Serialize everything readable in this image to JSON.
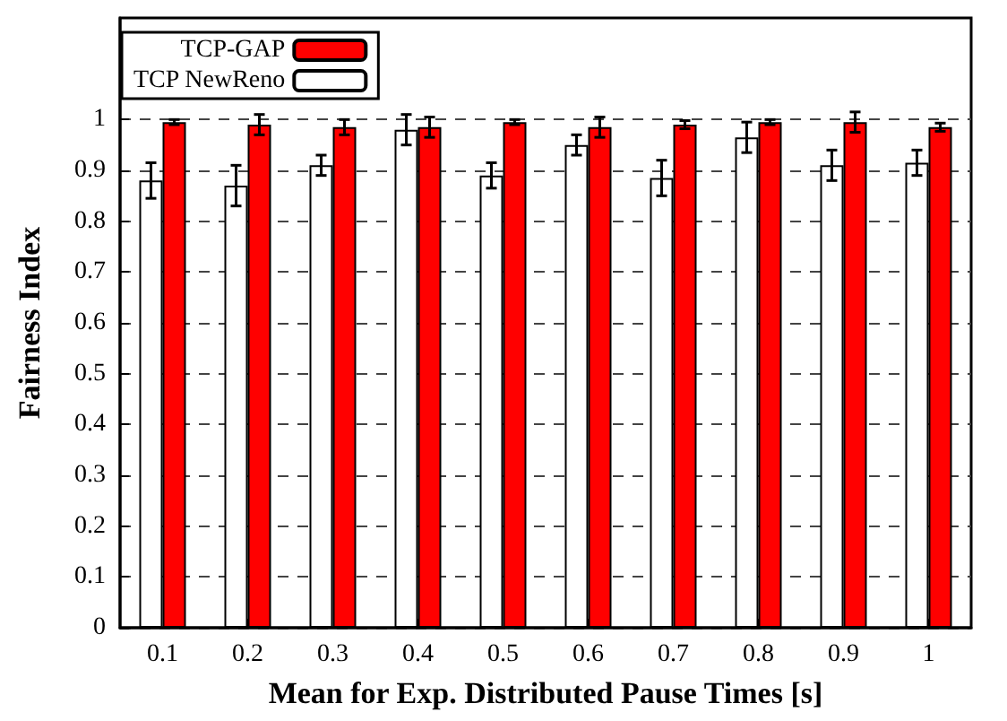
{
  "chart_data": {
    "type": "bar",
    "xlabel": "Mean for Exp. Distributed Pause Times [s]",
    "ylabel": "Fairness Index",
    "categories": [
      "0.1",
      "0.2",
      "0.3",
      "0.4",
      "0.5",
      "0.6",
      "0.7",
      "0.8",
      "0.9",
      "1"
    ],
    "series": [
      {
        "name": "TCP NewReno",
        "color": "#ffffff",
        "values": [
          0.88,
          0.87,
          0.91,
          0.98,
          0.89,
          0.95,
          0.885,
          0.965,
          0.91,
          0.915
        ],
        "errors": [
          0.035,
          0.04,
          0.02,
          0.03,
          0.025,
          0.02,
          0.035,
          0.03,
          0.03,
          0.025
        ]
      },
      {
        "name": "TCP-GAP",
        "color": "#ff0000",
        "values": [
          0.995,
          0.99,
          0.985,
          0.985,
          0.995,
          0.985,
          0.99,
          0.995,
          0.995,
          0.985
        ],
        "errors": [
          0.005,
          0.02,
          0.015,
          0.02,
          0.005,
          0.02,
          0.008,
          0.005,
          0.02,
          0.008
        ]
      }
    ],
    "ylim": [
      0,
      1.2
    ],
    "yticks": [
      0,
      0.1,
      0.2,
      0.3,
      0.4,
      0.5,
      0.6,
      0.7,
      0.8,
      0.9,
      1
    ],
    "grid": "y",
    "legend": "top left"
  }
}
